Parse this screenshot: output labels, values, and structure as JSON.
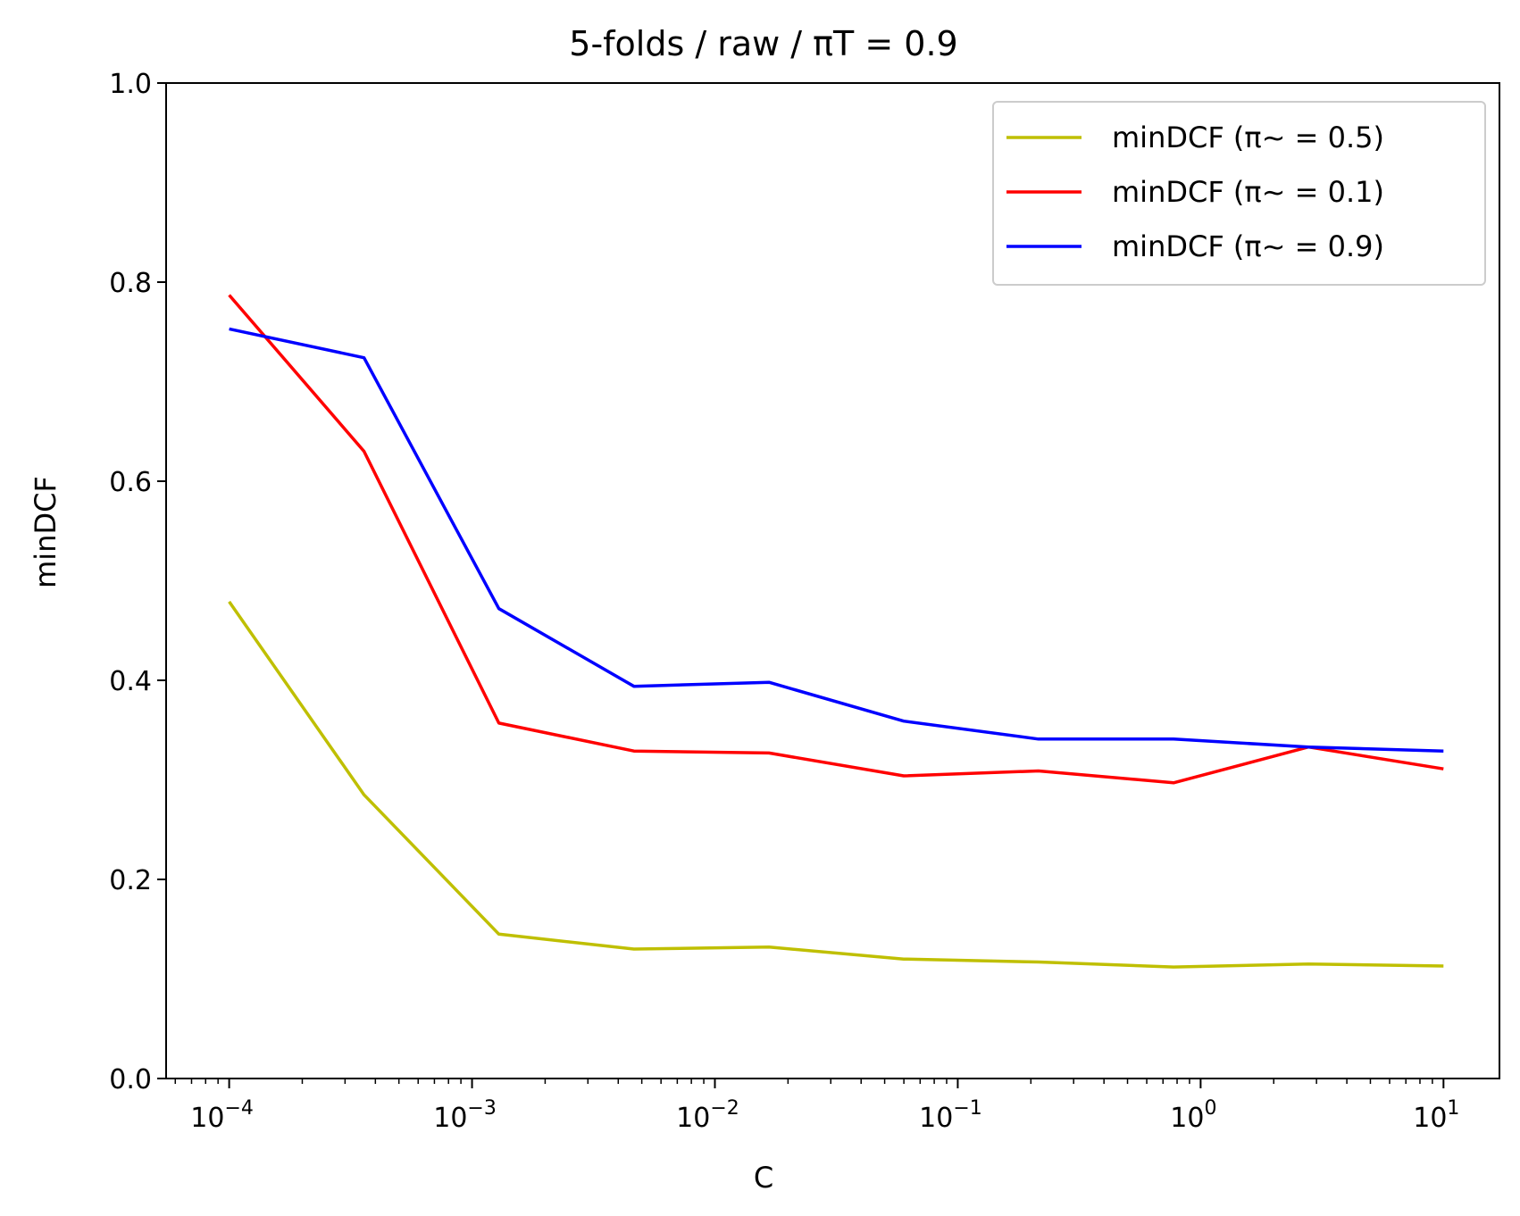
{
  "chart_data": {
    "type": "line",
    "title": "5-folds / raw / πT = 0.9",
    "xlabel": "C",
    "ylabel": "minDCF",
    "xscale": "log",
    "xlim": [
      5.5e-05,
      17
    ],
    "ylim": [
      0,
      1
    ],
    "x": [
      0.0001,
      0.000359,
      0.00129,
      0.00464,
      0.0167,
      0.0599,
      0.215,
      0.774,
      2.78,
      10
    ],
    "x_ticks": [
      {
        "value": 0.0001,
        "base": "10",
        "exp": "−4"
      },
      {
        "value": 0.001,
        "base": "10",
        "exp": "−3"
      },
      {
        "value": 0.01,
        "base": "10",
        "exp": "−2"
      },
      {
        "value": 0.1,
        "base": "10",
        "exp": "−1"
      },
      {
        "value": 1,
        "base": "10",
        "exp": "0"
      },
      {
        "value": 10,
        "base": "10",
        "exp": "1"
      }
    ],
    "y_ticks": [
      "0.0",
      "0.2",
      "0.4",
      "0.6",
      "0.8",
      "1.0"
    ],
    "grid": false,
    "legend": "top-right",
    "series": [
      {
        "name": "minDCF (π~ = 0.5)",
        "color": "#bfbf00",
        "values": [
          0.479,
          0.285,
          0.145,
          0.13,
          0.132,
          0.12,
          0.117,
          0.112,
          0.115,
          0.113
        ]
      },
      {
        "name": "minDCF (π~ = 0.1)",
        "color": "#ff0000",
        "values": [
          0.787,
          0.63,
          0.357,
          0.329,
          0.327,
          0.304,
          0.309,
          0.297,
          0.333,
          0.311
        ]
      },
      {
        "name": "minDCF (π~ = 0.9)",
        "color": "#0000ff",
        "values": [
          0.753,
          0.724,
          0.472,
          0.394,
          0.398,
          0.359,
          0.341,
          0.341,
          0.333,
          0.329
        ]
      }
    ]
  }
}
